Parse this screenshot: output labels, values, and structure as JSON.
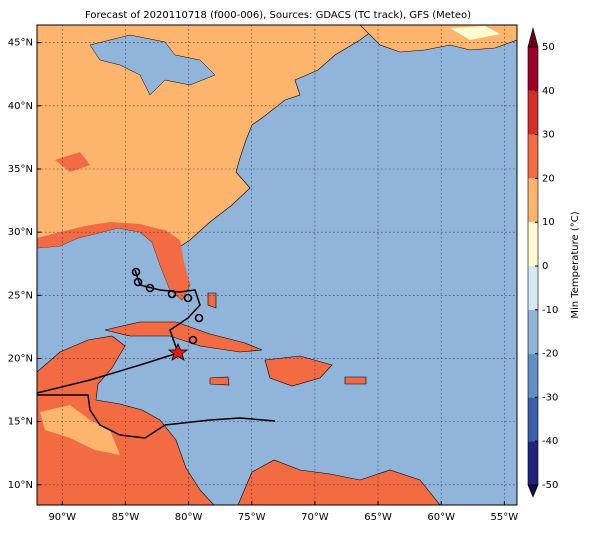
{
  "title": "Forecast of 2020110718 (f000-006), Sources: GDACS (TC track), GFS (Meteo)",
  "map": {
    "xlim": [
      -92,
      -54
    ],
    "ylim": [
      8.4,
      46.4
    ],
    "xticks": [
      {
        "value": -90,
        "label": "90°W"
      },
      {
        "value": -85,
        "label": "85°W"
      },
      {
        "value": -80,
        "label": "80°W"
      },
      {
        "value": -75,
        "label": "75°W"
      },
      {
        "value": -70,
        "label": "70°W"
      },
      {
        "value": -65,
        "label": "65°W"
      },
      {
        "value": -60,
        "label": "60°W"
      },
      {
        "value": -55,
        "label": "55°W"
      }
    ],
    "yticks": [
      {
        "value": 10,
        "label": "10°N"
      },
      {
        "value": 15,
        "label": "15°N"
      },
      {
        "value": 20,
        "label": "20°N"
      },
      {
        "value": 25,
        "label": "25°N"
      },
      {
        "value": 30,
        "label": "30°N"
      },
      {
        "value": 35,
        "label": "35°N"
      },
      {
        "value": 40,
        "label": "40°N"
      },
      {
        "value": 45,
        "label": "45°N"
      }
    ],
    "grid": true
  },
  "colorbar": {
    "label": "Min Temperature (°C)",
    "lim": [
      -50,
      50
    ],
    "ticks": [
      -50,
      -40,
      -30,
      -20,
      -10,
      0,
      10,
      20,
      30,
      40,
      50
    ],
    "colors": [
      "#23237f",
      "#3b5ea8",
      "#5f8fc3",
      "#91b4da",
      "#d6e9f3",
      "#fefbd3",
      "#fdb56e",
      "#f26b43",
      "#d42e27",
      "#9e0025"
    ],
    "under": "#10104f",
    "over": "#6a0015"
  }
}
